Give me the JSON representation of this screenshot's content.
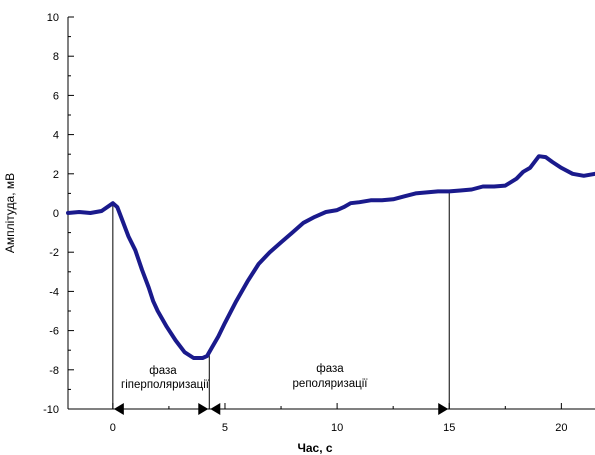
{
  "chart_data": {
    "type": "line",
    "title": "",
    "xlabel": "Час, с",
    "ylabel": "Амплітуда, мВ",
    "xlim": [
      -2,
      21.5
    ],
    "ylim": [
      -10,
      10
    ],
    "xticks": [
      0,
      5,
      10,
      15,
      20
    ],
    "yticks": [
      -10,
      -8,
      -6,
      -4,
      -2,
      0,
      2,
      4,
      6,
      8,
      10
    ],
    "grid": false,
    "legend": "none",
    "series": [
      {
        "color": "#1a1a8c",
        "x": [
          -2.0,
          -1.5,
          -1.0,
          -0.5,
          0.0,
          0.2,
          0.4,
          0.7,
          1.0,
          1.3,
          1.6,
          1.8,
          2.0,
          2.4,
          2.8,
          3.2,
          3.6,
          4.0,
          4.2,
          4.4,
          4.7,
          5.0,
          5.5,
          6.0,
          6.5,
          7.0,
          7.5,
          8.0,
          8.5,
          9.0,
          9.5,
          10.0,
          10.3,
          10.6,
          11.0,
          11.5,
          12.0,
          12.5,
          13.0,
          13.5,
          14.0,
          14.5,
          15.0,
          15.5,
          16.0,
          16.5,
          17.0,
          17.5,
          18.0,
          18.3,
          18.6,
          19.0,
          19.3,
          19.6,
          20.0,
          20.5,
          21.0,
          21.5
        ],
        "y": [
          0.0,
          0.05,
          0.0,
          0.1,
          0.5,
          0.3,
          -0.3,
          -1.2,
          -1.9,
          -2.9,
          -3.8,
          -4.5,
          -5.0,
          -5.8,
          -6.5,
          -7.1,
          -7.4,
          -7.4,
          -7.3,
          -6.9,
          -6.3,
          -5.6,
          -4.5,
          -3.5,
          -2.6,
          -2.0,
          -1.5,
          -1.0,
          -0.5,
          -0.2,
          0.05,
          0.15,
          0.3,
          0.5,
          0.55,
          0.65,
          0.65,
          0.7,
          0.85,
          1.0,
          1.05,
          1.1,
          1.1,
          1.15,
          1.2,
          1.35,
          1.35,
          1.4,
          1.75,
          2.1,
          2.3,
          2.9,
          2.85,
          2.6,
          2.3,
          2.0,
          1.9,
          2.0
        ]
      }
    ],
    "annotations": {
      "markers_x": [
        0,
        4.3,
        15
      ],
      "phase1_line1": "фаза",
      "phase1_line2": "гіперполяризації",
      "phase2_line1": "фаза",
      "phase2_line2": "реполяризації"
    }
  }
}
